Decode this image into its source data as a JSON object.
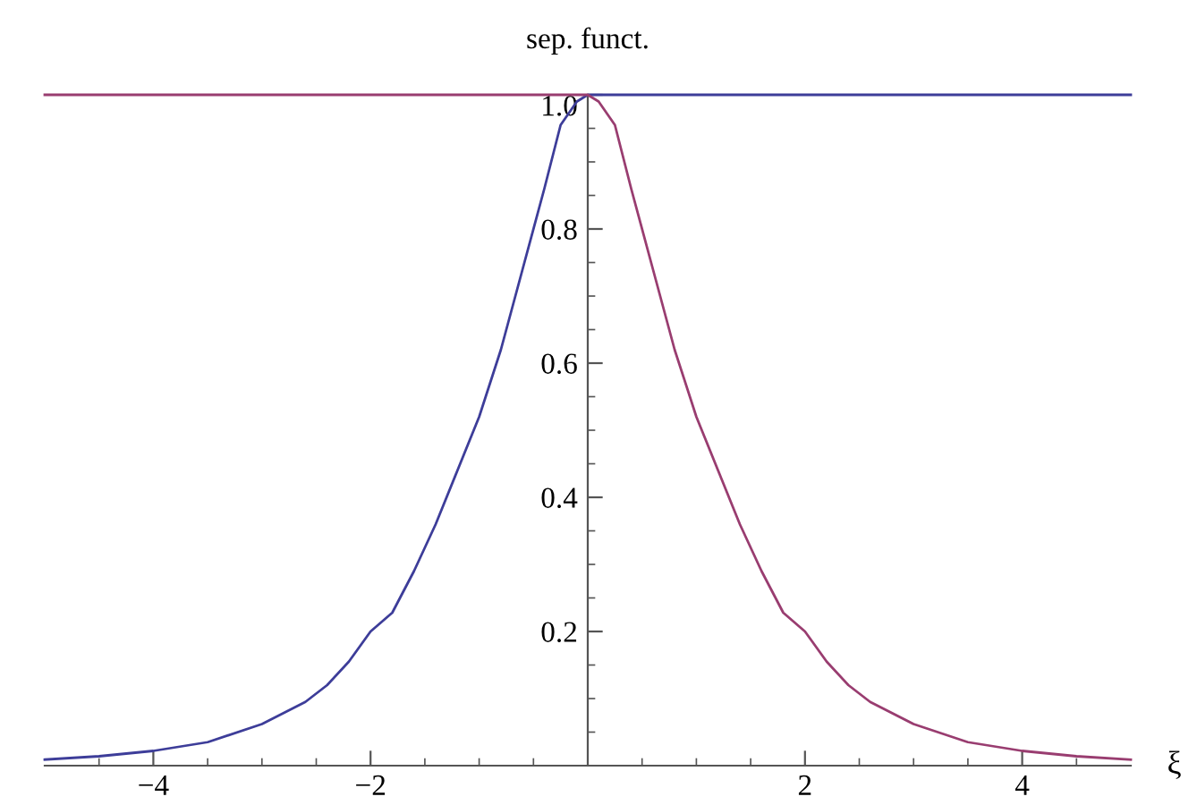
{
  "chart_data": {
    "type": "line",
    "ylabel": "sep. funct.",
    "xlabel": "ξ",
    "series": [
      {
        "color": "#3d3d99",
        "x": [
          -5,
          -4.5,
          -4,
          -3.5,
          -3,
          -2.6,
          -2.4,
          -2.2,
          -2,
          -1.8,
          -1.6,
          -1.4,
          -1.2,
          -1,
          -0.8,
          -0.6,
          -0.4,
          -0.25,
          -0.1,
          0,
          5
        ],
        "values": [
          0.009,
          0.014,
          0.022,
          0.035,
          0.062,
          0.095,
          0.12,
          0.155,
          0.2,
          0.228,
          0.29,
          0.36,
          0.44,
          0.52,
          0.62,
          0.74,
          0.86,
          0.955,
          0.99,
          1,
          1
        ]
      },
      {
        "color": "#993d70",
        "x": [
          -5,
          0,
          0.1,
          0.25,
          0.4,
          0.6,
          0.8,
          1,
          1.2,
          1.4,
          1.6,
          1.8,
          2,
          2.2,
          2.4,
          2.6,
          3,
          3.5,
          4,
          4.5,
          5
        ],
        "values": [
          1,
          1,
          0.99,
          0.955,
          0.86,
          0.74,
          0.62,
          0.52,
          0.44,
          0.36,
          0.29,
          0.228,
          0.2,
          0.155,
          0.12,
          0.095,
          0.062,
          0.035,
          0.022,
          0.014,
          0.009
        ]
      }
    ],
    "xlim": [
      -5,
      5
    ],
    "ylim": [
      0,
      1
    ],
    "xticks": [
      {
        "value": -4,
        "label": "−4"
      },
      {
        "value": -2,
        "label": "−2"
      },
      2,
      4,
      {
        "value": -4.5,
        "label": null
      },
      {
        "value": -3.5,
        "label": null
      },
      {
        "value": -3,
        "label": null
      },
      {
        "value": -2.5,
        "label": null
      },
      {
        "value": -1.5,
        "label": null
      },
      {
        "value": -1,
        "label": null
      },
      {
        "value": -0.5,
        "label": null
      },
      {
        "value": 0.5,
        "label": null
      },
      {
        "value": 1,
        "label": null
      },
      {
        "value": 1.5,
        "label": null
      },
      {
        "value": 2.5,
        "label": null
      },
      {
        "value": 3,
        "label": null
      },
      {
        "value": 3.5,
        "label": null
      },
      {
        "value": 4.5,
        "label": null
      }
    ],
    "yticks": [
      0.2,
      0.4,
      0.6,
      0.8,
      {
        "value": 1,
        "label": "1.0"
      },
      {
        "value": 0.05,
        "label": null
      },
      {
        "value": 0.1,
        "label": null
      },
      {
        "value": 0.15,
        "label": null
      },
      {
        "value": 0.25,
        "label": null
      },
      {
        "value": 0.3,
        "label": null
      },
      {
        "value": 0.35,
        "label": null
      },
      {
        "value": 0.45,
        "label": null
      },
      {
        "value": 0.5,
        "label": null
      },
      {
        "value": 0.55,
        "label": null
      },
      {
        "value": 0.65,
        "label": null
      },
      {
        "value": 0.7,
        "label": null
      },
      {
        "value": 0.75,
        "label": null
      },
      {
        "value": 0.85,
        "label": null
      },
      {
        "value": 0.9,
        "label": null
      },
      {
        "value": 0.95,
        "label": null
      }
    ],
    "grid": false,
    "legend": false,
    "marker": "none",
    "line_style": "solid"
  }
}
